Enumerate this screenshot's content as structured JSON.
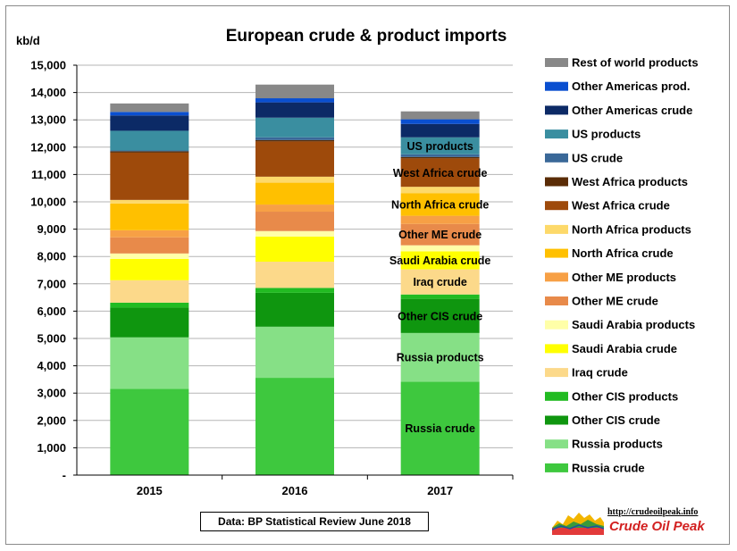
{
  "chart_data": {
    "type": "bar",
    "stacked": true,
    "title": "European crude & product imports",
    "ylabel": "kb/d",
    "xlabel": "",
    "ylim": [
      0,
      15000
    ],
    "yticks": [
      "-",
      "1,000",
      "2,000",
      "3,000",
      "4,000",
      "5,000",
      "6,000",
      "7,000",
      "8,000",
      "9,000",
      "10,000",
      "11,000",
      "12,000",
      "13,000",
      "14,000",
      "15,000"
    ],
    "categories": [
      "2015",
      "2016",
      "2017"
    ],
    "grid": true,
    "legend_position": "right",
    "series": [
      {
        "name": "Russia crude",
        "color": "#3ec83e",
        "values": [
          3160,
          3560,
          3420
        ]
      },
      {
        "name": "Russia products",
        "color": "#86e086",
        "values": [
          1880,
          1870,
          1780
        ]
      },
      {
        "name": "Other CIS crude",
        "color": "#0f960f",
        "values": [
          1090,
          1240,
          1250
        ]
      },
      {
        "name": "Other CIS products",
        "color": "#22bb22",
        "values": [
          180,
          180,
          160
        ]
      },
      {
        "name": "Iraq crude",
        "color": "#fcd98a",
        "values": [
          820,
          960,
          920
        ]
      },
      {
        "name": "Saudi Arabia crude",
        "color": "#ffff00",
        "values": [
          780,
          920,
          660
        ]
      },
      {
        "name": "Saudi Arabia products",
        "color": "#ffffa8",
        "values": [
          200,
          200,
          220
        ]
      },
      {
        "name": "Other ME crude",
        "color": "#e88a4a",
        "values": [
          590,
          710,
          780
        ]
      },
      {
        "name": "Other ME products",
        "color": "#f7a045",
        "values": [
          260,
          260,
          300
        ]
      },
      {
        "name": "North Africa crude",
        "color": "#ffc000",
        "values": [
          980,
          800,
          830
        ]
      },
      {
        "name": "North Africa products",
        "color": "#fdd96a",
        "values": [
          130,
          220,
          230
        ]
      },
      {
        "name": "West Africa crude",
        "color": "#9e4a0b",
        "values": [
          1730,
          1290,
          1040
        ]
      },
      {
        "name": "West Africa products",
        "color": "#5a2c06",
        "values": [
          50,
          50,
          50
        ]
      },
      {
        "name": "US crude",
        "color": "#3a6898",
        "values": [
          30,
          100,
          100
        ]
      },
      {
        "name": "US products",
        "color": "#3a8ea0",
        "values": [
          720,
          720,
          620
        ]
      },
      {
        "name": "Other Americas crude",
        "color": "#0c2a66",
        "values": [
          560,
          560,
          490
        ]
      },
      {
        "name": "Other Americas prod.",
        "color": "#0a4fd0",
        "values": [
          130,
          150,
          170
        ]
      },
      {
        "name": "Rest of world products",
        "color": "#888888",
        "values": [
          310,
          500,
          290
        ]
      }
    ],
    "annotations": [
      {
        "text": "US products",
        "year": "2017",
        "series": "US products"
      },
      {
        "text": "West Africa crude",
        "year": "2017",
        "series": "West Africa crude"
      },
      {
        "text": "North Africa crude",
        "year": "2017",
        "series": "North Africa crude"
      },
      {
        "text": "Other ME crude",
        "year": "2017",
        "series": "Other ME crude"
      },
      {
        "text": "Saudi Arabia crude",
        "year": "2017",
        "series": "Saudi Arabia crude"
      },
      {
        "text": "Iraq crude",
        "year": "2017",
        "series": "Iraq crude"
      },
      {
        "text": "Other CIS crude",
        "year": "2017",
        "series": "Other CIS crude"
      },
      {
        "text": "Russia products",
        "year": "2017",
        "series": "Russia products"
      },
      {
        "text": "Russia crude",
        "year": "2017",
        "series": "Russia crude"
      }
    ]
  },
  "source_note": "Data: BP Statistical Review June 2018",
  "logo": {
    "url": "http://crudeoilpeak.info",
    "name": "Crude Oil Peak"
  }
}
